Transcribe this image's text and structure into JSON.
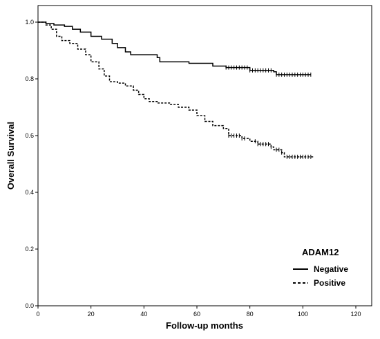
{
  "chart_data": {
    "type": "line",
    "title": "",
    "xlabel": "Follow-up months",
    "ylabel": "Overall Survival",
    "xlim": [
      0,
      120
    ],
    "ylim": [
      0,
      1.0
    ],
    "x_ticks": [
      "0",
      "20",
      "40",
      "60",
      "80",
      "100",
      "120"
    ],
    "y_ticks": [
      "0.0",
      "0.2",
      "0.4",
      "0.6",
      "0.8",
      "1.0"
    ],
    "grid": false,
    "legend": {
      "title": "ADAM12",
      "placement": "bottom-right",
      "entries": [
        "Negative",
        "Positive"
      ]
    },
    "series": [
      {
        "name": "Negative",
        "line_style": "solid",
        "points": [
          [
            0,
            1.0
          ],
          [
            3,
            0.995
          ],
          [
            6,
            0.99
          ],
          [
            10,
            0.985
          ],
          [
            13,
            0.975
          ],
          [
            16,
            0.965
          ],
          [
            20,
            0.95
          ],
          [
            24,
            0.94
          ],
          [
            28,
            0.925
          ],
          [
            30,
            0.91
          ],
          [
            33,
            0.895
          ],
          [
            35,
            0.885
          ],
          [
            45,
            0.875
          ],
          [
            46,
            0.86
          ],
          [
            57,
            0.855
          ],
          [
            66,
            0.845
          ],
          [
            71,
            0.84
          ],
          [
            73,
            0.84
          ],
          [
            80,
            0.83
          ],
          [
            89,
            0.825
          ],
          [
            90,
            0.815
          ],
          [
            103,
            0.815
          ]
        ],
        "censor_times": [
          71,
          72,
          73,
          74,
          75,
          76,
          77,
          78,
          79,
          80,
          81,
          82,
          83,
          84,
          85,
          86,
          87,
          88,
          90,
          91,
          92,
          93,
          94,
          95,
          96,
          97,
          98,
          99,
          100,
          101,
          102,
          103
        ]
      },
      {
        "name": "Positive",
        "line_style": "dashed",
        "points": [
          [
            0,
            1.0
          ],
          [
            3,
            0.99
          ],
          [
            5,
            0.975
          ],
          [
            7,
            0.95
          ],
          [
            9,
            0.935
          ],
          [
            12,
            0.925
          ],
          [
            15,
            0.905
          ],
          [
            18,
            0.885
          ],
          [
            20,
            0.86
          ],
          [
            23,
            0.835
          ],
          [
            25,
            0.81
          ],
          [
            27,
            0.79
          ],
          [
            30,
            0.785
          ],
          [
            33,
            0.775
          ],
          [
            36,
            0.76
          ],
          [
            38,
            0.745
          ],
          [
            40,
            0.73
          ],
          [
            42,
            0.72
          ],
          [
            45,
            0.715
          ],
          [
            50,
            0.71
          ],
          [
            53,
            0.7
          ],
          [
            57,
            0.69
          ],
          [
            60,
            0.67
          ],
          [
            63,
            0.65
          ],
          [
            66,
            0.635
          ],
          [
            70,
            0.625
          ],
          [
            72,
            0.6
          ],
          [
            77,
            0.59
          ],
          [
            80,
            0.58
          ],
          [
            83,
            0.57
          ],
          [
            88,
            0.56
          ],
          [
            89,
            0.55
          ],
          [
            92,
            0.54
          ],
          [
            93,
            0.525
          ],
          [
            104,
            0.525
          ]
        ],
        "censor_times": [
          72,
          73,
          74,
          75,
          76,
          77,
          78,
          82,
          83,
          84,
          85,
          86,
          87,
          88,
          90,
          91,
          92,
          94,
          95,
          96,
          97,
          98,
          99,
          100,
          101,
          102,
          103
        ]
      }
    ]
  }
}
